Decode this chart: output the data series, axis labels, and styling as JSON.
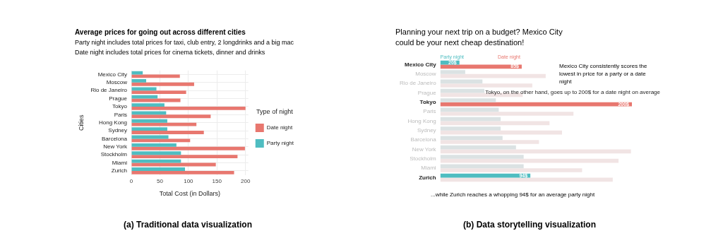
{
  "chart_data": [
    {
      "type": "bar",
      "orientation": "horizontal",
      "title": "Average prices for going out across different cities",
      "subtitle": "Party night includes total prices for taxi, club entry, 2 longdrinks and a big mac\nDate night includes total prices for cinema tickets, dinner and drinks",
      "xlabel": "Total Cost (in Dollars)",
      "ylabel": "Cities",
      "legend_title": "Type of night",
      "legend": "right",
      "grid": true,
      "categories": [
        "Mexico City",
        "Moscow",
        "Rio de Janeiro",
        "Prague",
        "Tokyo",
        "Paris",
        "Hong Kong",
        "Sydney",
        "Barcelona",
        "New York",
        "Stockholm",
        "Miami",
        "Zurich"
      ],
      "series": [
        {
          "name": "Party night",
          "color": "#4fbdc1",
          "values": [
            20,
            26,
            44,
            46,
            58,
            61,
            63,
            63,
            65,
            79,
            87,
            87,
            94
          ]
        },
        {
          "name": "Date night",
          "color": "#e8776f",
          "values": [
            85,
            110,
            96,
            86,
            200,
            139,
            114,
            127,
            103,
            199,
            186,
            148,
            180
          ]
        }
      ],
      "xlim": [
        0,
        205
      ],
      "xticks": [
        0,
        50,
        100,
        150,
        200
      ],
      "annotations": [
        "(a) Traditional data visualization"
      ]
    },
    {
      "type": "bar",
      "orientation": "horizontal",
      "title": "Planning your next trip on a budget? Mexico City could be your next cheap destination!",
      "tick_labels": "y",
      "categories": [
        "Mexico City",
        "Moscow",
        "Rio de Janeiro",
        "Prague",
        "Tokyo",
        "Paris",
        "Hong Kong",
        "Sydney",
        "Barcelona",
        "New York",
        "Stockholm",
        "Miami",
        "Zurich"
      ],
      "series": [
        {
          "name": "Party night",
          "color": "#4fbdc1",
          "colors": [
            "#4fbdc1",
            "#dbe2e3",
            "#dbe2e3",
            "#dbe2e3",
            "#dbe2e3",
            "#dbe2e3",
            "#dbe2e3",
            "#dbe2e3",
            "#dbe2e3",
            "#dbe2e3",
            "#dbe2e3",
            "#dbe2e3",
            "#4fbdc1"
          ],
          "values": [
            20,
            26,
            44,
            46,
            58,
            61,
            63,
            63,
            65,
            79,
            87,
            87,
            94
          ],
          "value_labels": [
            "20$",
            null,
            null,
            null,
            null,
            null,
            null,
            null,
            null,
            null,
            null,
            null,
            "94$"
          ]
        },
        {
          "name": "Date night",
          "color": "#e8776f",
          "colors": [
            "#e8776f",
            "#f1e4e4",
            "#f1e4e4",
            "#f1e4e4",
            "#e8776f",
            "#f1e4e4",
            "#f1e4e4",
            "#f1e4e4",
            "#f1e4e4",
            "#f1e4e4",
            "#f1e4e4",
            "#f1e4e4",
            "#f1e4e4"
          ],
          "values": [
            85,
            110,
            96,
            86,
            200,
            139,
            114,
            127,
            103,
            199,
            186,
            148,
            180
          ],
          "value_labels": [
            "85$",
            null,
            null,
            null,
            "200$",
            null,
            null,
            null,
            null,
            null,
            null,
            null,
            null
          ]
        }
      ],
      "annotations": [
        "Mexico City consistently scores the lowest in price for a party or a date night",
        {
          "text": "Tokyo, on the other hand, goes up to 200$ for a date night on average",
          "x": 200,
          "y": "Tokyo"
        },
        "...while Zurich reaches a whopping 94$ for an average party night",
        "(b) Data storytelling visualization"
      ]
    }
  ]
}
